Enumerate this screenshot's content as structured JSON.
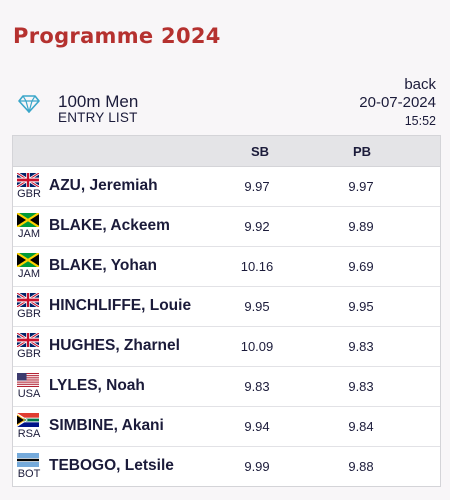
{
  "header": {
    "title": "Programme 2024"
  },
  "event": {
    "icon": "diamond-icon",
    "name": "100m Men",
    "subtitle": "ENTRY LIST",
    "back_label": "back",
    "date": "20-07-2024",
    "time": "15:52"
  },
  "table": {
    "columns": {
      "sb": "SB",
      "pb": "PB"
    },
    "rows": [
      {
        "flag": "gbr-flag-icon",
        "country": "GBR",
        "name": "AZU, Jeremiah",
        "sb": "9.97",
        "pb": "9.97"
      },
      {
        "flag": "jam-flag-icon",
        "country": "JAM",
        "name": "BLAKE, Ackeem",
        "sb": "9.92",
        "pb": "9.89"
      },
      {
        "flag": "jam-flag-icon",
        "country": "JAM",
        "name": "BLAKE, Yohan",
        "sb": "10.16",
        "pb": "9.69"
      },
      {
        "flag": "gbr-flag-icon",
        "country": "GBR",
        "name": "HINCHLIFFE, Louie",
        "sb": "9.95",
        "pb": "9.95"
      },
      {
        "flag": "gbr-flag-icon",
        "country": "GBR",
        "name": "HUGHES, Zharnel",
        "sb": "10.09",
        "pb": "9.83"
      },
      {
        "flag": "usa-flag-icon",
        "country": "USA",
        "name": "LYLES, Noah",
        "sb": "9.83",
        "pb": "9.83"
      },
      {
        "flag": "rsa-flag-icon",
        "country": "RSA",
        "name": "SIMBINE, Akani",
        "sb": "9.94",
        "pb": "9.84"
      },
      {
        "flag": "bot-flag-icon",
        "country": "BOT",
        "name": "TEBOGO, Letsile",
        "sb": "9.99",
        "pb": "9.88"
      }
    ]
  },
  "colors": {
    "title": "#b5312f",
    "header_bg": "#e4e4e7",
    "text": "#1b1b3a"
  }
}
